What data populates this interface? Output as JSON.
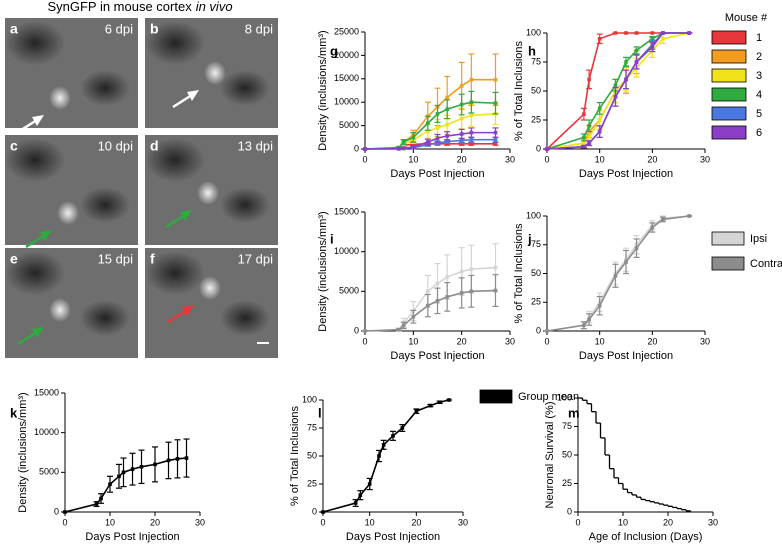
{
  "figure_title": {
    "text": "SynGFP in mouse cortex",
    "emphasis": "in vivo"
  },
  "image_panels": [
    {
      "label": "a",
      "caption": "6 dpi"
    },
    {
      "label": "b",
      "caption": "8 dpi"
    },
    {
      "label": "c",
      "caption": "10 dpi"
    },
    {
      "label": "d",
      "caption": "13 dpi"
    },
    {
      "label": "e",
      "caption": "15 dpi"
    },
    {
      "label": "f",
      "caption": "17 dpi"
    }
  ],
  "chart_data": [
    {
      "type": "line",
      "label": "g",
      "xlabel": "Days Post Injection",
      "ylabel": "Density (inclusions/mm³)",
      "x": [
        0,
        7,
        8,
        10,
        13,
        15,
        17,
        20,
        22,
        27
      ],
      "xlim": [
        0,
        30
      ],
      "xticks": [
        0,
        10,
        20,
        30
      ],
      "ylim": [
        0,
        25000
      ],
      "yticks": [
        0,
        5000,
        10000,
        15000,
        20000,
        25000
      ],
      "series": [
        {
          "name": "1",
          "color": "#e8373a",
          "values": [
            0,
            200,
            800,
            1000,
            1100,
            1100,
            1100,
            1100,
            1100,
            1100
          ],
          "errors": [
            0,
            100,
            200,
            300,
            300,
            300,
            300,
            300,
            300,
            300
          ]
        },
        {
          "name": "2",
          "color": "#f39c1f",
          "values": [
            0,
            200,
            1500,
            3000,
            7000,
            9000,
            11000,
            13500,
            14800,
            14800
          ],
          "errors": [
            0,
            200,
            500,
            1000,
            3000,
            4000,
            4500,
            5000,
            5500,
            5500
          ]
        },
        {
          "name": "3",
          "color": "#f2e21a",
          "values": [
            0,
            200,
            1000,
            2000,
            3800,
            4500,
            5200,
            6500,
            7200,
            7500
          ],
          "errors": [
            0,
            100,
            400,
            800,
            1500,
            1800,
            2000,
            2200,
            2300,
            2300
          ]
        },
        {
          "name": "4",
          "color": "#2eaa3f",
          "values": [
            0,
            300,
            1500,
            2500,
            5500,
            7500,
            8500,
            9500,
            10000,
            9800
          ],
          "errors": [
            0,
            200,
            500,
            1000,
            1500,
            1800,
            2000,
            2200,
            2300,
            2300
          ]
        },
        {
          "name": "5",
          "color": "#4a78e0",
          "values": [
            0,
            20,
            100,
            300,
            900,
            1300,
            1600,
            1800,
            2000,
            2000
          ],
          "errors": [
            0,
            20,
            100,
            200,
            300,
            400,
            400,
            500,
            500,
            500
          ]
        },
        {
          "name": "6",
          "color": "#8a3fc6",
          "values": [
            0,
            50,
            200,
            400,
            1500,
            2300,
            2800,
            3200,
            3500,
            3500
          ],
          "errors": [
            0,
            50,
            150,
            300,
            600,
            800,
            900,
            1000,
            1000,
            1000
          ]
        }
      ]
    },
    {
      "type": "line",
      "label": "h",
      "xlabel": "Days Post Injection",
      "ylabel": "% of Total Inclusions",
      "x": [
        0,
        7,
        8,
        10,
        13,
        15,
        17,
        20,
        22,
        27
      ],
      "xlim": [
        0,
        30
      ],
      "xticks": [
        0,
        10,
        20,
        30
      ],
      "ylim": [
        0,
        100
      ],
      "yticks": [
        0,
        25,
        50,
        75,
        100
      ],
      "legend": "right",
      "legend_title": "Mouse #",
      "series": [
        {
          "name": "1",
          "color": "#e8373a",
          "values": [
            0,
            30,
            60,
            95,
            100,
            100,
            100,
            100,
            100,
            100
          ],
          "errors": [
            0,
            5,
            8,
            4,
            0,
            0,
            0,
            0,
            0,
            0
          ]
        },
        {
          "name": "2",
          "color": "#f39c1f",
          "values": [
            0,
            5,
            15,
            25,
            50,
            60,
            75,
            90,
            100,
            100
          ],
          "errors": [
            0,
            3,
            5,
            8,
            10,
            12,
            10,
            6,
            0,
            0
          ]
        },
        {
          "name": "3",
          "color": "#f2e21a",
          "values": [
            0,
            5,
            10,
            25,
            50,
            60,
            70,
            85,
            95,
            100
          ],
          "errors": [
            0,
            3,
            5,
            8,
            10,
            10,
            8,
            6,
            4,
            0
          ]
        },
        {
          "name": "4",
          "color": "#2eaa3f",
          "values": [
            0,
            10,
            20,
            35,
            55,
            75,
            85,
            95,
            100,
            100
          ],
          "errors": [
            0,
            3,
            5,
            5,
            5,
            4,
            3,
            2,
            0,
            0
          ]
        },
        {
          "name": "5",
          "color": "#4a78e0",
          "values": [
            0,
            2,
            5,
            15,
            45,
            60,
            75,
            90,
            100,
            100
          ],
          "errors": [
            0,
            1,
            2,
            5,
            8,
            8,
            6,
            4,
            0,
            0
          ]
        },
        {
          "name": "6",
          "color": "#8a3fc6",
          "values": [
            0,
            2,
            5,
            15,
            45,
            60,
            75,
            88,
            100,
            100
          ],
          "errors": [
            0,
            1,
            2,
            5,
            8,
            8,
            6,
            4,
            0,
            0
          ]
        }
      ]
    },
    {
      "type": "line",
      "label": "i",
      "xlabel": "Days Post Injection",
      "ylabel": "Density (inclusions/mm³)",
      "x": [
        0,
        7,
        8,
        10,
        13,
        15,
        17,
        20,
        22,
        27
      ],
      "xlim": [
        0,
        30
      ],
      "xticks": [
        0,
        10,
        20,
        30
      ],
      "ylim": [
        0,
        15000
      ],
      "yticks": [
        0,
        5000,
        10000,
        15000
      ],
      "series": [
        {
          "name": "Ipsi",
          "color": "#d4d4d4",
          "values": [
            0,
            200,
            1000,
            2500,
            5000,
            6000,
            6800,
            7500,
            7800,
            8000
          ],
          "errors": [
            0,
            200,
            600,
            1200,
            2000,
            2500,
            2800,
            3000,
            3000,
            3000
          ]
        },
        {
          "name": "Contra",
          "color": "#8c8c8c",
          "values": [
            0,
            150,
            700,
            1800,
            3200,
            3800,
            4300,
            4800,
            5000,
            5100
          ],
          "errors": [
            0,
            100,
            400,
            800,
            1400,
            1600,
            1800,
            1900,
            2000,
            2000
          ]
        }
      ]
    },
    {
      "type": "line",
      "label": "j",
      "xlabel": "Days Post Injection",
      "ylabel": "% of Total Inclusions",
      "x": [
        0,
        7,
        8,
        10,
        13,
        15,
        17,
        20,
        22,
        27
      ],
      "xlim": [
        0,
        30
      ],
      "xticks": [
        0,
        10,
        20,
        30
      ],
      "ylim": [
        0,
        100
      ],
      "yticks": [
        0,
        25,
        50,
        75,
        100
      ],
      "legend": "right",
      "series": [
        {
          "name": "Ipsi",
          "color": "#d4d4d4",
          "values": [
            0,
            5,
            12,
            25,
            50,
            62,
            75,
            92,
            98,
            100
          ],
          "errors": [
            0,
            3,
            5,
            8,
            10,
            10,
            8,
            4,
            2,
            0
          ]
        },
        {
          "name": "Contra",
          "color": "#8c8c8c",
          "values": [
            0,
            5,
            10,
            22,
            48,
            60,
            72,
            90,
            97,
            100
          ],
          "errors": [
            0,
            3,
            5,
            8,
            10,
            10,
            8,
            4,
            2,
            0
          ]
        }
      ]
    },
    {
      "type": "line",
      "label": "k",
      "xlabel": "Days Post Injection",
      "ylabel": "Density (inclusions/mm³)",
      "x": [
        0,
        7,
        8,
        10,
        12,
        13,
        15,
        17,
        20,
        23,
        25,
        27
      ],
      "xlim": [
        0,
        30
      ],
      "xticks": [
        0,
        10,
        20,
        30
      ],
      "ylim": [
        0,
        15000
      ],
      "yticks": [
        0,
        5000,
        10000,
        15000
      ],
      "series": [
        {
          "color": "#000000",
          "values": [
            0,
            1000,
            1700,
            3500,
            4500,
            5000,
            5400,
            5700,
            6000,
            6500,
            6700,
            6800
          ],
          "errors": [
            0,
            300,
            600,
            1000,
            1500,
            1800,
            2000,
            2100,
            2200,
            2300,
            2400,
            2400
          ]
        }
      ]
    },
    {
      "type": "line",
      "label": "l",
      "xlabel": "Days Post Injection",
      "ylabel": "% of Total Inclusions",
      "x": [
        0,
        7,
        8,
        10,
        12,
        13,
        15,
        17,
        20,
        23,
        25,
        27
      ],
      "xlim": [
        0,
        30
      ],
      "xticks": [
        0,
        10,
        20,
        30
      ],
      "ylim": [
        0,
        100
      ],
      "yticks": [
        0,
        25,
        50,
        75,
        100
      ],
      "legend": "right",
      "series": [
        {
          "name": "Group mean",
          "color": "#000000",
          "values": [
            0,
            8,
            15,
            25,
            50,
            60,
            68,
            75,
            90,
            95,
            98,
            100
          ],
          "errors": [
            0,
            3,
            4,
            5,
            5,
            4,
            4,
            3,
            2,
            1,
            1,
            0
          ]
        }
      ]
    },
    {
      "type": "step",
      "label": "m",
      "xlabel": "Age of Inclusion (Days)",
      "ylabel": "Neuronal Survival (%)",
      "x": [
        0,
        1,
        2,
        3,
        4,
        5,
        6,
        7,
        8,
        9,
        10,
        11,
        12,
        13,
        14,
        15,
        16,
        17,
        18,
        19,
        20,
        21,
        22,
        23,
        24,
        25
      ],
      "xlim": [
        0,
        30
      ],
      "xticks": [
        0,
        10,
        20,
        30
      ],
      "ylim": [
        0,
        100
      ],
      "yticks": [
        0,
        25,
        50,
        75,
        100
      ],
      "series": [
        {
          "color": "#000000",
          "values": [
            100,
            98,
            95,
            88,
            78,
            65,
            50,
            38,
            30,
            25,
            20,
            17,
            15,
            13,
            11,
            10,
            9,
            8,
            7,
            6,
            5,
            4,
            3,
            2,
            1,
            0
          ]
        }
      ]
    }
  ]
}
